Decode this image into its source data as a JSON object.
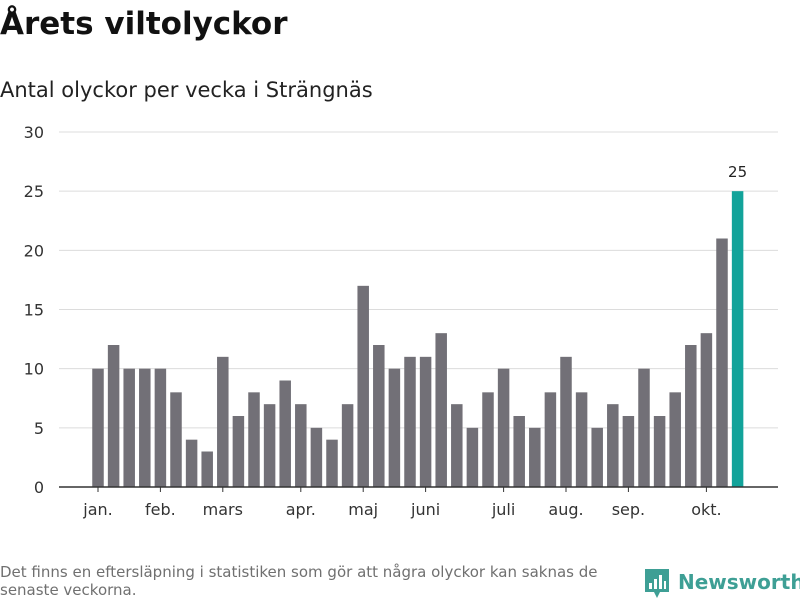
{
  "header": {
    "title": "Årets viltolyckor",
    "subtitle": "Antal olyckor per vecka i Strängnäs"
  },
  "footer": {
    "note": "Det finns en eftersläpning i statistiken som gör att några olyckor kan saknas de senaste veckorna.",
    "brand": "Newsworthy",
    "brand_icon": "bar-chart-logo-icon"
  },
  "colors": {
    "bar": "#727077",
    "highlight": "#12a39a",
    "grid": "#dcdcdc",
    "axis": "#333333",
    "brand": "#3e9f95"
  },
  "chart_data": {
    "type": "bar",
    "title": "Årets viltolyckor",
    "subtitle": "Antal olyckor per vecka i Strängnäs",
    "xlabel": "",
    "ylabel": "",
    "ylim": [
      0,
      30
    ],
    "yticks": [
      0,
      5,
      10,
      15,
      20,
      25,
      30
    ],
    "grid": true,
    "values": [
      10,
      12,
      10,
      10,
      10,
      8,
      4,
      3,
      11,
      6,
      8,
      7,
      9,
      7,
      5,
      4,
      7,
      17,
      12,
      10,
      11,
      11,
      13,
      7,
      5,
      8,
      10,
      6,
      5,
      8,
      11,
      8,
      5,
      7,
      6,
      10,
      6,
      8,
      12,
      13,
      21,
      25
    ],
    "month_ticks": [
      {
        "label": "jan.",
        "bar_index": 0
      },
      {
        "label": "feb.",
        "bar_index": 4
      },
      {
        "label": "mars",
        "bar_index": 8
      },
      {
        "label": "apr.",
        "bar_index": 13
      },
      {
        "label": "maj",
        "bar_index": 17
      },
      {
        "label": "juni",
        "bar_index": 21
      },
      {
        "label": "juli",
        "bar_index": 26
      },
      {
        "label": "aug.",
        "bar_index": 30
      },
      {
        "label": "sep.",
        "bar_index": 34
      },
      {
        "label": "okt.",
        "bar_index": 39
      }
    ],
    "highlight_index": 41,
    "data_labels": [
      {
        "bar_index": 41,
        "text": "25"
      }
    ]
  }
}
